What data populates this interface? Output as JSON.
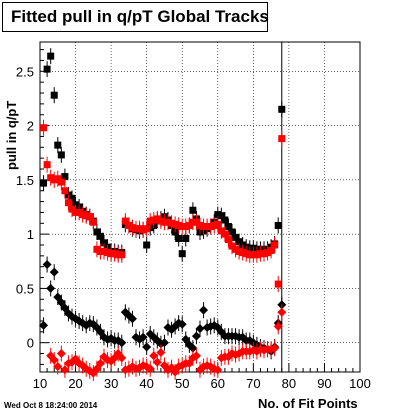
{
  "chart_data": {
    "type": "scatter",
    "title": "Fitted pull in q/pT  Global Tracks",
    "xlabel": "No. of Fit Points",
    "ylabel": "pull in q/pT",
    "xlim": [
      10,
      100
    ],
    "ylim": [
      -0.27,
      2.77
    ],
    "x_ticks": [
      10,
      20,
      30,
      40,
      50,
      60,
      70,
      80,
      90,
      100
    ],
    "y_ticks": [
      0,
      0.5,
      1,
      1.5,
      2,
      2.5
    ],
    "grid": true,
    "vertical_line_x": 78,
    "series": [
      {
        "marker": "square",
        "color": "#000000",
        "points": [
          [
            11,
            1.47
          ],
          [
            12,
            2.52
          ],
          [
            13,
            2.64
          ],
          [
            14,
            2.28
          ],
          [
            15,
            1.82
          ],
          [
            16,
            1.73
          ],
          [
            17,
            1.53
          ],
          [
            18,
            1.36
          ],
          [
            19,
            1.33
          ],
          [
            20,
            1.27
          ],
          [
            21,
            1.25
          ],
          [
            22,
            1.21
          ],
          [
            23,
            1.18
          ],
          [
            24,
            1.16
          ],
          [
            25,
            1.12
          ],
          [
            26,
            1.02
          ],
          [
            27,
            0.98
          ],
          [
            28,
            0.92
          ],
          [
            29,
            0.88
          ],
          [
            30,
            0.84
          ],
          [
            31,
            0.84
          ],
          [
            32,
            0.83
          ],
          [
            33,
            0.83
          ],
          [
            34,
            1.09
          ],
          [
            35,
            1.08
          ],
          [
            36,
            1.05
          ],
          [
            37,
            1.04
          ],
          [
            38,
            1.03
          ],
          [
            39,
            1.04
          ],
          [
            40,
            0.9
          ],
          [
            41,
            1.06
          ],
          [
            42,
            1.08
          ],
          [
            43,
            1.13
          ],
          [
            44,
            1.14
          ],
          [
            45,
            1.16
          ],
          [
            46,
            1.13
          ],
          [
            47,
            1.08
          ],
          [
            48,
            1.02
          ],
          [
            49,
            0.96
          ],
          [
            50,
            0.82
          ],
          [
            51,
            0.96
          ],
          [
            52,
            1.08
          ],
          [
            53,
            1.22
          ],
          [
            54,
            1.14
          ],
          [
            55,
            1.02
          ],
          [
            56,
            1.03
          ],
          [
            57,
            1.05
          ],
          [
            58,
            1.07
          ],
          [
            59,
            1.11
          ],
          [
            60,
            1.18
          ],
          [
            61,
            1.17
          ],
          [
            62,
            1.13
          ],
          [
            63,
            1.07
          ],
          [
            64,
            1.02
          ],
          [
            65,
            0.97
          ],
          [
            66,
            0.93
          ],
          [
            67,
            0.9
          ],
          [
            68,
            0.88
          ],
          [
            69,
            0.87
          ],
          [
            70,
            0.87
          ],
          [
            71,
            0.86
          ],
          [
            72,
            0.86
          ],
          [
            73,
            0.86
          ],
          [
            74,
            0.86
          ],
          [
            75,
            0.88
          ],
          [
            76,
            0.91
          ],
          [
            77,
            1.08
          ],
          [
            78,
            2.15
          ]
        ]
      },
      {
        "marker": "square",
        "color": "#ff0000",
        "points": [
          [
            11,
            1.98
          ],
          [
            12,
            1.64
          ],
          [
            13,
            1.52
          ],
          [
            14,
            1.5
          ],
          [
            15,
            1.51
          ],
          [
            16,
            1.48
          ],
          [
            17,
            1.4
          ],
          [
            18,
            1.29
          ],
          [
            19,
            1.23
          ],
          [
            20,
            1.2
          ],
          [
            21,
            1.2
          ],
          [
            22,
            1.18
          ],
          [
            23,
            1.17
          ],
          [
            24,
            1.16
          ],
          [
            25,
            1.11
          ],
          [
            26,
            0.86
          ],
          [
            27,
            0.84
          ],
          [
            28,
            0.84
          ],
          [
            29,
            0.83
          ],
          [
            30,
            0.82
          ],
          [
            31,
            0.82
          ],
          [
            32,
            0.81
          ],
          [
            33,
            0.81
          ],
          [
            34,
            1.12
          ],
          [
            35,
            1.08
          ],
          [
            36,
            1.06
          ],
          [
            37,
            1.05
          ],
          [
            38,
            1.05
          ],
          [
            39,
            1.04
          ],
          [
            40,
            1.05
          ],
          [
            41,
            1.12
          ],
          [
            42,
            1.13
          ],
          [
            43,
            1.14
          ],
          [
            44,
            1.12
          ],
          [
            45,
            1.11
          ],
          [
            46,
            1.11
          ],
          [
            47,
            1.1
          ],
          [
            48,
            1.09
          ],
          [
            49,
            1.08
          ],
          [
            50,
            1.07
          ],
          [
            51,
            1.07
          ],
          [
            52,
            1.08
          ],
          [
            53,
            1.11
          ],
          [
            54,
            1.11
          ],
          [
            55,
            1.08
          ],
          [
            56,
            1.07
          ],
          [
            57,
            1.07
          ],
          [
            58,
            1.07
          ],
          [
            59,
            1.08
          ],
          [
            60,
            1.09
          ],
          [
            61,
            1.03
          ],
          [
            62,
            1.0
          ],
          [
            63,
            0.95
          ],
          [
            64,
            0.89
          ],
          [
            65,
            0.86
          ],
          [
            66,
            0.84
          ],
          [
            67,
            0.83
          ],
          [
            68,
            0.82
          ],
          [
            69,
            0.81
          ],
          [
            70,
            0.81
          ],
          [
            71,
            0.81
          ],
          [
            72,
            0.82
          ],
          [
            73,
            0.82
          ],
          [
            74,
            0.83
          ],
          [
            75,
            0.85
          ],
          [
            76,
            0.9
          ],
          [
            77,
            0.54
          ],
          [
            78,
            1.88
          ]
        ]
      },
      {
        "marker": "diamond",
        "color": "#000000",
        "points": [
          [
            11,
            0.16
          ],
          [
            12,
            0.72
          ],
          [
            13,
            0.5
          ],
          [
            14,
            0.65
          ],
          [
            15,
            0.42
          ],
          [
            16,
            0.37
          ],
          [
            17,
            0.32
          ],
          [
            18,
            0.27
          ],
          [
            19,
            0.24
          ],
          [
            20,
            0.22
          ],
          [
            21,
            0.2
          ],
          [
            22,
            0.18
          ],
          [
            23,
            0.16
          ],
          [
            24,
            0.18
          ],
          [
            25,
            0.17
          ],
          [
            26,
            0.14
          ],
          [
            27,
            0.1
          ],
          [
            28,
            0.05
          ],
          [
            29,
            0.03
          ],
          [
            30,
            0.04
          ],
          [
            31,
            0.02
          ],
          [
            32,
            0.02
          ],
          [
            33,
            0.0
          ],
          [
            34,
            0.28
          ],
          [
            35,
            0.25
          ],
          [
            36,
            0.22
          ],
          [
            37,
            0.05
          ],
          [
            38,
            0.03
          ],
          [
            39,
            0.05
          ],
          [
            40,
            -0.04
          ],
          [
            41,
            0.08
          ],
          [
            42,
            0.05
          ],
          [
            43,
            0.02
          ],
          [
            44,
            -0.01
          ],
          [
            45,
            0.0
          ],
          [
            46,
            0.14
          ],
          [
            47,
            0.12
          ],
          [
            48,
            0.15
          ],
          [
            49,
            0.18
          ],
          [
            50,
            0.17
          ],
          [
            51,
            0.03
          ],
          [
            52,
            -0.02
          ],
          [
            53,
            -0.05
          ],
          [
            54,
            0.06
          ],
          [
            55,
            0.13
          ],
          [
            56,
            0.3
          ],
          [
            57,
            0.14
          ],
          [
            58,
            0.15
          ],
          [
            59,
            0.16
          ],
          [
            60,
            0.14
          ],
          [
            61,
            0.1
          ],
          [
            62,
            0.06
          ],
          [
            63,
            0.06
          ],
          [
            64,
            0.06
          ],
          [
            65,
            0.06
          ],
          [
            66,
            0.05
          ],
          [
            67,
            0.05
          ],
          [
            68,
            0.02
          ],
          [
            69,
            0.02
          ],
          [
            70,
            0.0
          ],
          [
            71,
            -0.02
          ],
          [
            72,
            -0.04
          ],
          [
            73,
            -0.05
          ],
          [
            74,
            -0.06
          ],
          [
            75,
            -0.08
          ],
          [
            76,
            -0.04
          ],
          [
            77,
            0.18
          ],
          [
            78,
            0.35
          ]
        ]
      },
      {
        "marker": "diamond",
        "color": "#ff0000",
        "points": [
          [
            11,
            -0.52
          ],
          [
            12,
            -0.44
          ],
          [
            13,
            -0.12
          ],
          [
            14,
            -0.16
          ],
          [
            15,
            -0.22
          ],
          [
            16,
            -0.1
          ],
          [
            17,
            -0.25
          ],
          [
            18,
            -0.19
          ],
          [
            19,
            -0.18
          ],
          [
            20,
            -0.15
          ],
          [
            21,
            -0.19
          ],
          [
            22,
            -0.21
          ],
          [
            23,
            -0.24
          ],
          [
            24,
            -0.26
          ],
          [
            25,
            -0.28
          ],
          [
            26,
            -0.24
          ],
          [
            27,
            -0.19
          ],
          [
            28,
            -0.13
          ],
          [
            29,
            -0.16
          ],
          [
            30,
            -0.17
          ],
          [
            31,
            -0.14
          ],
          [
            32,
            -0.1
          ],
          [
            33,
            -0.14
          ],
          [
            34,
            -0.25
          ],
          [
            35,
            -0.24
          ],
          [
            36,
            -0.22
          ],
          [
            37,
            -0.24
          ],
          [
            38,
            -0.23
          ],
          [
            39,
            -0.21
          ],
          [
            40,
            -0.22
          ],
          [
            41,
            -0.24
          ],
          [
            42,
            -0.12
          ],
          [
            43,
            -0.18
          ],
          [
            44,
            -0.09
          ],
          [
            45,
            -0.21
          ],
          [
            46,
            -0.25
          ],
          [
            47,
            -0.23
          ],
          [
            48,
            -0.27
          ],
          [
            49,
            -0.22
          ],
          [
            50,
            -0.21
          ],
          [
            51,
            -0.19
          ],
          [
            52,
            -0.19
          ],
          [
            53,
            -0.14
          ],
          [
            54,
            -0.12
          ],
          [
            55,
            -0.25
          ],
          [
            56,
            -0.22
          ],
          [
            57,
            -0.21
          ],
          [
            58,
            -0.22
          ],
          [
            59,
            -0.24
          ],
          [
            60,
            -0.25
          ],
          [
            61,
            -0.14
          ],
          [
            62,
            -0.13
          ],
          [
            63,
            -0.13
          ],
          [
            64,
            -0.1
          ],
          [
            65,
            -0.11
          ],
          [
            66,
            -0.1
          ],
          [
            67,
            -0.08
          ],
          [
            68,
            -0.08
          ],
          [
            69,
            -0.08
          ],
          [
            70,
            -0.07
          ],
          [
            71,
            -0.08
          ],
          [
            72,
            -0.06
          ],
          [
            73,
            -0.07
          ],
          [
            74,
            -0.06
          ],
          [
            75,
            -0.06
          ],
          [
            76,
            -0.05
          ],
          [
            77,
            0.15
          ],
          [
            78,
            0.28
          ]
        ]
      }
    ]
  },
  "timestamp": "Wed Oct  8 18:24:00 2014"
}
